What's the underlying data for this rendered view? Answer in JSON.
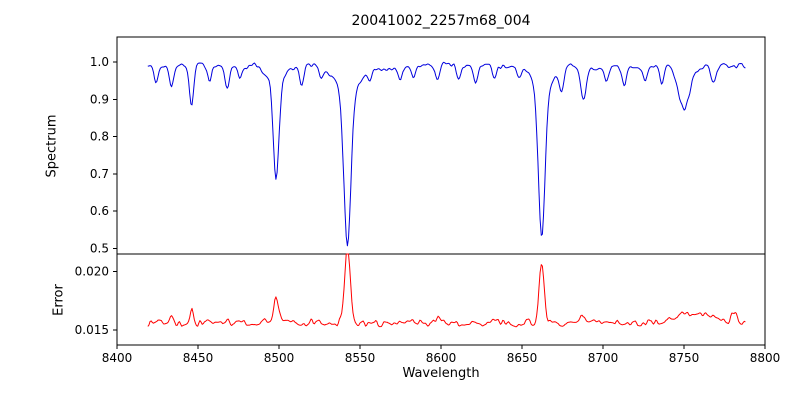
{
  "figure": {
    "background": "#ffffff",
    "axes_color": "#000000"
  },
  "chart_data": {
    "type": "line",
    "title": "20041002_2257m68_004",
    "xlabel": "Wavelength",
    "xlim": [
      8400,
      8800
    ],
    "x_range": [
      8419,
      8788
    ],
    "xticks": [
      8400,
      8450,
      8500,
      8550,
      8600,
      8650,
      8700,
      8750,
      8800
    ],
    "xtick_labels": [
      "8400",
      "8450",
      "8500",
      "8550",
      "8600",
      "8650",
      "8700",
      "8750",
      "8800"
    ],
    "legend": "none",
    "grid": false,
    "panels": [
      {
        "name": "spectrum",
        "ylabel": "Spectrum",
        "color": "#0000dd",
        "ylim": [
          0.485,
          1.067
        ],
        "yticks": [
          0.5,
          0.6,
          0.7,
          0.8,
          0.9,
          1.0
        ],
        "ytick_labels": [
          "0.5",
          "0.6",
          "0.7",
          "0.8",
          "0.9",
          "1.0"
        ],
        "continuum": 0.99,
        "noise_amplitude": 0.011,
        "absorption_lines": [
          {
            "center": 8424.0,
            "depth": 0.045,
            "width": 1.2
          },
          {
            "center": 8433.5,
            "depth": 0.05,
            "width": 1.3
          },
          {
            "center": 8446.0,
            "depth": 0.11,
            "width": 1.3
          },
          {
            "center": 8457.0,
            "depth": 0.04,
            "width": 1.2
          },
          {
            "center": 8468.0,
            "depth": 0.055,
            "width": 1.4
          },
          {
            "center": 8476.0,
            "depth": 0.035,
            "width": 1.2
          },
          {
            "center": 8498.2,
            "depth": 0.27,
            "width": 1.7
          },
          {
            "center": 8498.2,
            "depth": 0.05,
            "width": 5.0
          },
          {
            "center": 8514.0,
            "depth": 0.05,
            "width": 1.3
          },
          {
            "center": 8526.0,
            "depth": 0.035,
            "width": 1.2
          },
          {
            "center": 8542.2,
            "depth": 0.44,
            "width": 2.1
          },
          {
            "center": 8542.2,
            "depth": 0.08,
            "width": 7.0
          },
          {
            "center": 8556.0,
            "depth": 0.03,
            "width": 1.2
          },
          {
            "center": 8575.0,
            "depth": 0.04,
            "width": 1.3
          },
          {
            "center": 8583.0,
            "depth": 0.035,
            "width": 1.2
          },
          {
            "center": 8598.0,
            "depth": 0.045,
            "width": 1.3
          },
          {
            "center": 8611.0,
            "depth": 0.04,
            "width": 1.2
          },
          {
            "center": 8621.5,
            "depth": 0.045,
            "width": 1.3
          },
          {
            "center": 8633.0,
            "depth": 0.03,
            "width": 1.2
          },
          {
            "center": 8648.0,
            "depth": 0.035,
            "width": 1.2
          },
          {
            "center": 8662.2,
            "depth": 0.42,
            "width": 2.0
          },
          {
            "center": 8662.2,
            "depth": 0.07,
            "width": 6.0
          },
          {
            "center": 8674.5,
            "depth": 0.065,
            "width": 1.4
          },
          {
            "center": 8688.0,
            "depth": 0.095,
            "width": 1.6
          },
          {
            "center": 8702.0,
            "depth": 0.04,
            "width": 1.2
          },
          {
            "center": 8713.0,
            "depth": 0.045,
            "width": 1.3
          },
          {
            "center": 8726.0,
            "depth": 0.035,
            "width": 1.2
          },
          {
            "center": 8736.5,
            "depth": 0.045,
            "width": 1.3
          },
          {
            "center": 8750.0,
            "depth": 0.115,
            "width": 3.5
          },
          {
            "center": 8768.0,
            "depth": 0.045,
            "width": 1.3
          }
        ]
      },
      {
        "name": "error",
        "ylabel": "Error",
        "color": "#ff0000",
        "ylim": [
          0.0137,
          0.0215
        ],
        "yticks": [
          0.015,
          0.02
        ],
        "ytick_labels": [
          "0.015",
          "0.020"
        ],
        "baseline": 0.0156,
        "noise_amplitude": 0.0005,
        "peaks": [
          {
            "center": 8433.5,
            "height": 0.0006,
            "width": 1.2
          },
          {
            "center": 8446.0,
            "height": 0.0011,
            "width": 1.2
          },
          {
            "center": 8468.0,
            "height": 0.0005,
            "width": 1.3
          },
          {
            "center": 8498.2,
            "height": 0.0021,
            "width": 1.5
          },
          {
            "center": 8542.2,
            "height": 0.0063,
            "width": 1.7
          },
          {
            "center": 8598.0,
            "height": 0.0004,
            "width": 1.3
          },
          {
            "center": 8662.2,
            "height": 0.0052,
            "width": 1.6
          },
          {
            "center": 8688.0,
            "height": 0.0007,
            "width": 1.4
          },
          {
            "center": 8757.0,
            "height": 0.0009,
            "width": 12.0
          },
          {
            "center": 8781.0,
            "height": 0.0009,
            "width": 1.5
          }
        ]
      }
    ]
  }
}
